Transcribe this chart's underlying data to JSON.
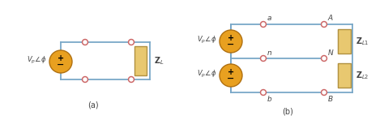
{
  "bg_color": "#ffffff",
  "line_color": "#7aa8c8",
  "node_color": "#cc6666",
  "node_fill": "#ffffff",
  "source_color": "#e8a020",
  "source_edge": "#b07010",
  "load_color": "#e8c870",
  "load_edge": "#b09040",
  "text_color": "#444444",
  "label_a": "(a)",
  "label_b": "(b)",
  "fig_width": 4.74,
  "fig_height": 1.48,
  "dpi": 100
}
